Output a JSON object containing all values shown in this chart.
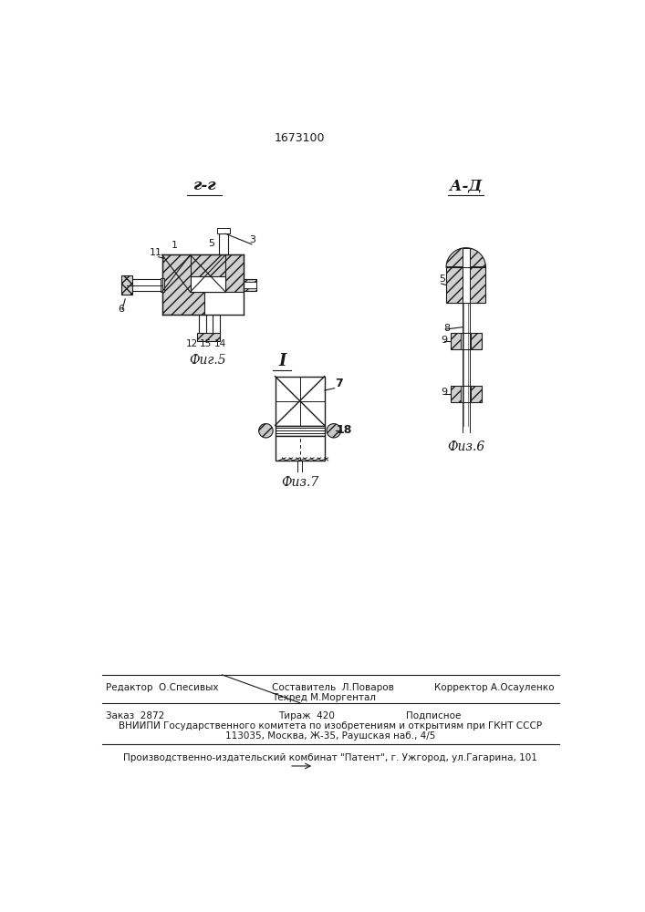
{
  "patent_number": "1673100",
  "bg_color": "#ffffff",
  "line_color": "#1a1a1a",
  "fig5_label": "Фиг.5",
  "fig6_label": "Физ.6",
  "fig7_label": "Физ.7",
  "section_label_gg": "г-г",
  "section_label_aa": "А-Д",
  "section_label_i": "I",
  "footer_line1_left": "Редактор  О.Спесивых",
  "footer_line1_center1": "Составитель  Л.Поваров",
  "footer_line1_center2": "Техред М.Моргентал",
  "footer_line1_right": "Корректор А.Осауленко",
  "footer_line2_left": "Заказ  2872",
  "footer_line2_center": "Тираж  420",
  "footer_line2_right": "Подписное",
  "footer_line3": "ВНИИПИ Государственного комитета по изобретениям и открытиям при ГКНТ СССР",
  "footer_line4": "113035, Москва, Ж-35, Раушская наб., 4/5",
  "footer_line5": "Производственно-издательский комбинат \"Патент\", г. Ужгород, ул.Гагарина, 101"
}
